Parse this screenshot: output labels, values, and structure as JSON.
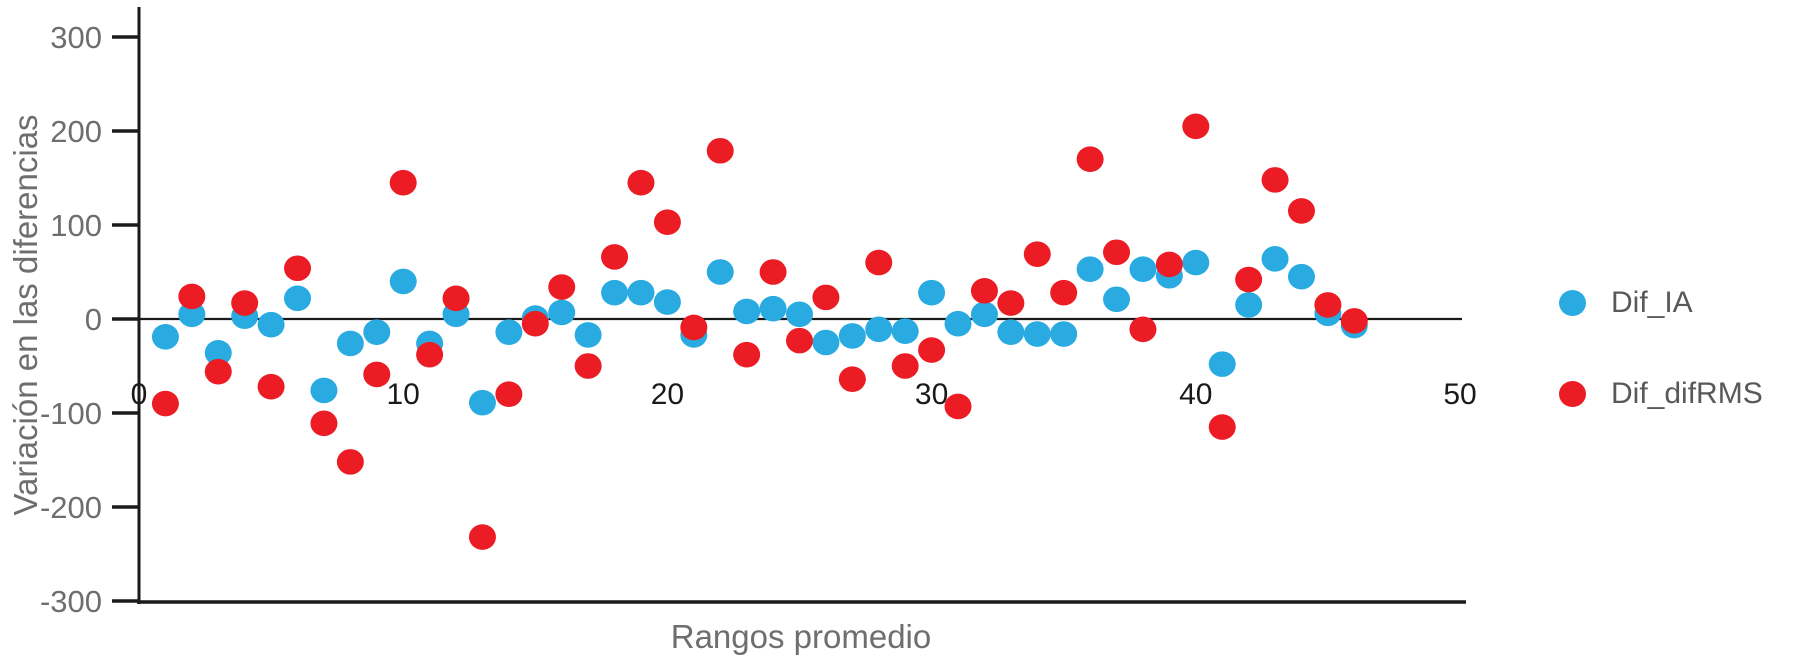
{
  "page": {
    "background": "#ffffff"
  },
  "chart_data": {
    "type": "scatter",
    "title": "",
    "xlabel": "Rangos promedio",
    "ylabel": "Variación en las diferencias",
    "xlim": [
      0,
      52
    ],
    "ylim": [
      -300,
      300
    ],
    "x_ticks": [
      "0",
      "10",
      "20",
      "30",
      "40",
      "50"
    ],
    "y_ticks": [
      "300",
      "200",
      "100",
      "0",
      "-100",
      "-200",
      "-300"
    ],
    "grid": false,
    "zero_line": true,
    "legend_position": "right-middle",
    "colors": {
      "axis_line": "#1a1a1a",
      "zero_line": "#1a1a1a",
      "y_tick_label": "#6e6e70",
      "x_tick_label": "#1a1a1a",
      "axis_title": "#6e6e70",
      "legend_text": "#58595b",
      "blue": "#29abe2",
      "red": "#ec1c24"
    },
    "series": [
      {
        "name": "Dif_IA",
        "color": "#29abe2",
        "points": [
          [
            1,
            -19
          ],
          [
            2,
            5
          ],
          [
            3,
            -36
          ],
          [
            4,
            3
          ],
          [
            5,
            -6
          ],
          [
            6,
            22
          ],
          [
            7,
            -76
          ],
          [
            8,
            -26
          ],
          [
            9,
            -14
          ],
          [
            10,
            40
          ],
          [
            11,
            -26
          ],
          [
            12,
            5
          ],
          [
            13,
            -89
          ],
          [
            14,
            -14
          ],
          [
            15,
            1
          ],
          [
            16,
            7
          ],
          [
            17,
            -17
          ],
          [
            18,
            28
          ],
          [
            19,
            28
          ],
          [
            20,
            18
          ],
          [
            21,
            -17
          ],
          [
            22,
            50
          ],
          [
            23,
            8
          ],
          [
            24,
            11
          ],
          [
            25,
            5
          ],
          [
            26,
            -25
          ],
          [
            27,
            -18
          ],
          [
            28,
            -11
          ],
          [
            29,
            -13
          ],
          [
            30,
            28
          ],
          [
            31,
            -5
          ],
          [
            32,
            5
          ],
          [
            33,
            -14
          ],
          [
            34,
            -16
          ],
          [
            35,
            -16
          ],
          [
            36,
            53
          ],
          [
            37,
            21
          ],
          [
            38,
            53
          ],
          [
            39,
            46
          ],
          [
            40,
            60
          ],
          [
            41,
            -48
          ],
          [
            42,
            15
          ],
          [
            43,
            64
          ],
          [
            44,
            45
          ],
          [
            45,
            6
          ],
          [
            46,
            -7
          ]
        ]
      },
      {
        "name": "Dif_difRMS",
        "color": "#ec1c24",
        "points": [
          [
            1,
            -90
          ],
          [
            2,
            24
          ],
          [
            3,
            -56
          ],
          [
            4,
            17
          ],
          [
            5,
            -72
          ],
          [
            6,
            54
          ],
          [
            7,
            -111
          ],
          [
            8,
            -152
          ],
          [
            9,
            -59
          ],
          [
            10,
            145
          ],
          [
            11,
            -38
          ],
          [
            12,
            22
          ],
          [
            13,
            -232
          ],
          [
            14,
            -80
          ],
          [
            15,
            -5
          ],
          [
            16,
            34
          ],
          [
            17,
            -50
          ],
          [
            18,
            66
          ],
          [
            19,
            145
          ],
          [
            20,
            103
          ],
          [
            21,
            -9
          ],
          [
            22,
            179
          ],
          [
            23,
            -38
          ],
          [
            24,
            50
          ],
          [
            25,
            -23
          ],
          [
            26,
            23
          ],
          [
            27,
            -64
          ],
          [
            28,
            60
          ],
          [
            29,
            -50
          ],
          [
            30,
            -33
          ],
          [
            31,
            -93
          ],
          [
            32,
            30
          ],
          [
            33,
            17
          ],
          [
            34,
            69
          ],
          [
            35,
            28
          ],
          [
            36,
            170
          ],
          [
            37,
            71
          ],
          [
            38,
            -11
          ],
          [
            39,
            58
          ],
          [
            40,
            205
          ],
          [
            41,
            -115
          ],
          [
            42,
            42
          ],
          [
            43,
            148
          ],
          [
            44,
            115
          ],
          [
            45,
            15
          ],
          [
            46,
            -2
          ]
        ]
      }
    ]
  }
}
